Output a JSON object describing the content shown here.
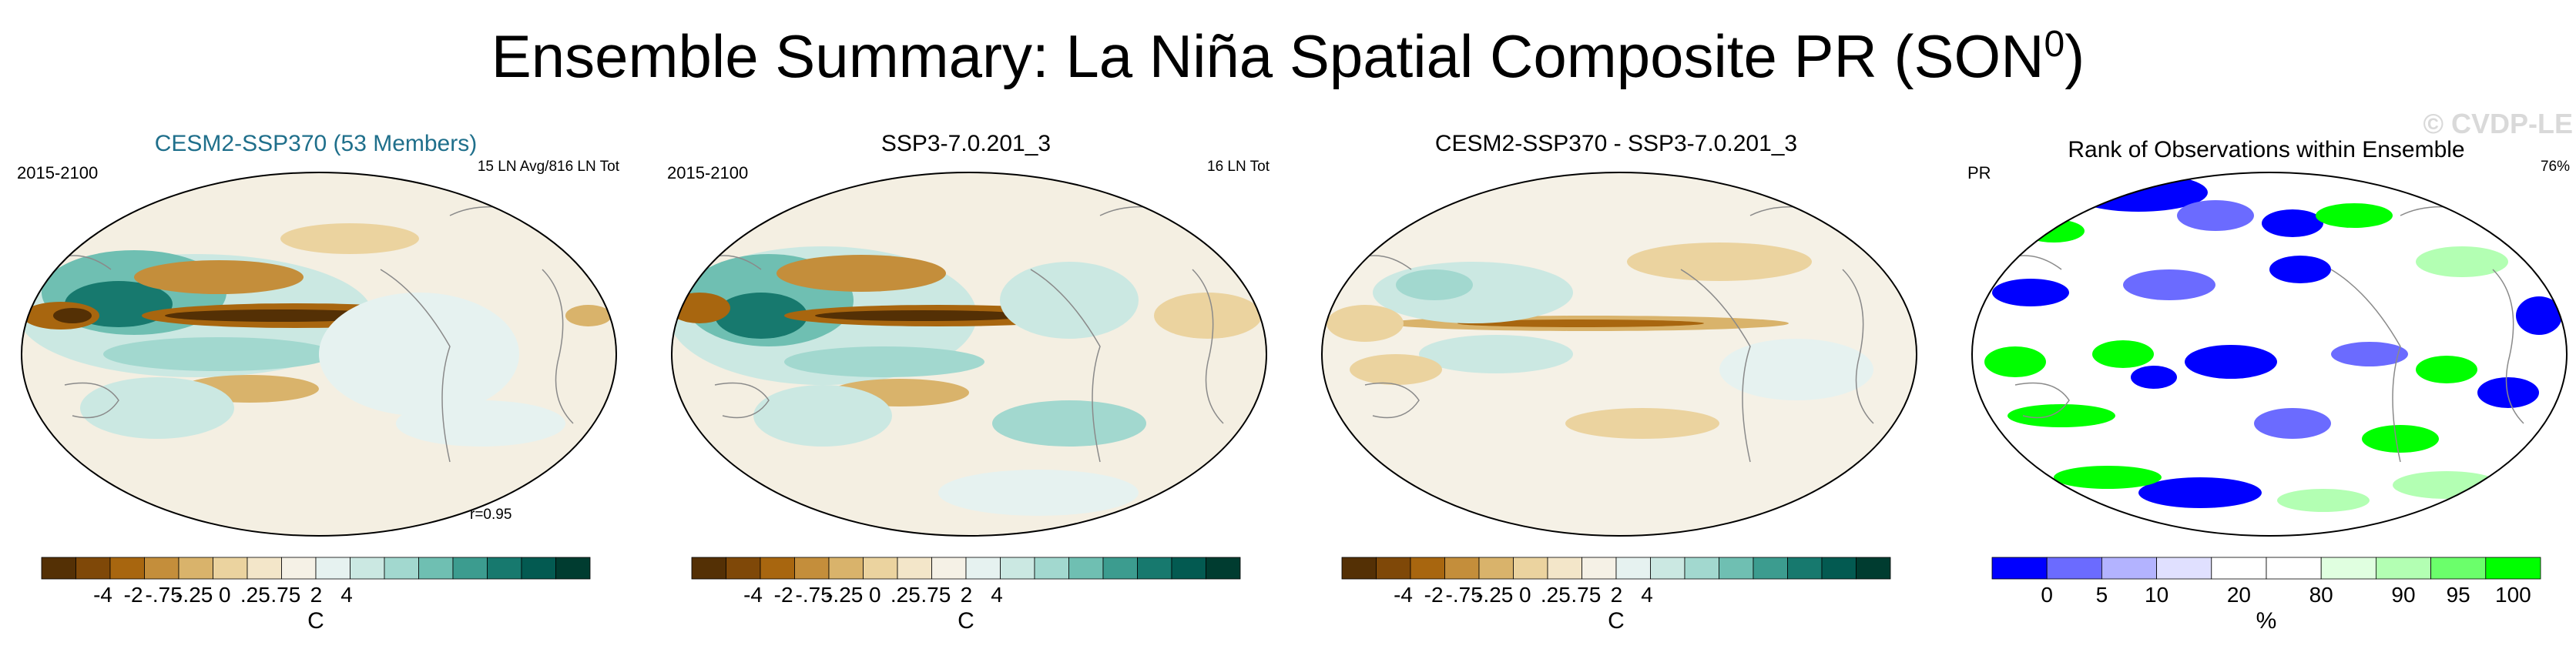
{
  "title": {
    "main": "Ensemble Summary: La Niña Spatial Composite PR (SON",
    "sup": "0",
    "close": ")"
  },
  "panels": [
    {
      "title": "CESM2-SSP370 (53 Members)",
      "title_color": "#1f6f8b",
      "left_tag": "2015-2100",
      "right_tag": "15 LN Avg/816 LN Tot",
      "corr": "r=0.95",
      "colorbar": "brbg",
      "unit": "C"
    },
    {
      "title": "SSP3-7.0.201_3",
      "title_color": "#000000",
      "left_tag": "2015-2100",
      "right_tag": "16 LN Tot",
      "corr": "",
      "colorbar": "brbg",
      "unit": "C"
    },
    {
      "title": "CESM2-SSP370 - SSP3-7.0.201_3",
      "title_color": "#000000",
      "left_tag": "",
      "right_tag": "",
      "corr": "",
      "colorbar": "brbg",
      "unit": "C"
    },
    {
      "title": "Rank of Observations within Ensemble",
      "title_color": "#000000",
      "left_tag": "PR",
      "right_tag": "76%",
      "corr": "",
      "watermark": "© CVDP-LE",
      "colorbar": "rank",
      "unit": "%"
    }
  ],
  "colorbars": {
    "brbg": {
      "labels": [
        "-4",
        "-2",
        "-.75",
        "-.25",
        "0",
        ".25",
        ".75",
        "2",
        "4"
      ],
      "colors": [
        "#543005",
        "#7f4808",
        "#a8660f",
        "#c48e3b",
        "#d9b36b",
        "#ebd39f",
        "#f3e6c9",
        "#f5f1e6",
        "#e6f2f0",
        "#cbe8e2",
        "#a2d8cf",
        "#6fbfb2",
        "#3c9c8f",
        "#17796e",
        "#035a51",
        "#003c30"
      ]
    },
    "rank": {
      "labels": [
        "0",
        "5",
        "10",
        "20",
        "80",
        "90",
        "95",
        "100"
      ],
      "colors": [
        "#0000ff",
        "#6b6bff",
        "#b3b3ff",
        "#e0e0ff",
        "#ffffff",
        "#ffffff",
        "#e0ffe0",
        "#b3ffb3",
        "#6bff6b",
        "#00ff00"
      ]
    }
  }
}
